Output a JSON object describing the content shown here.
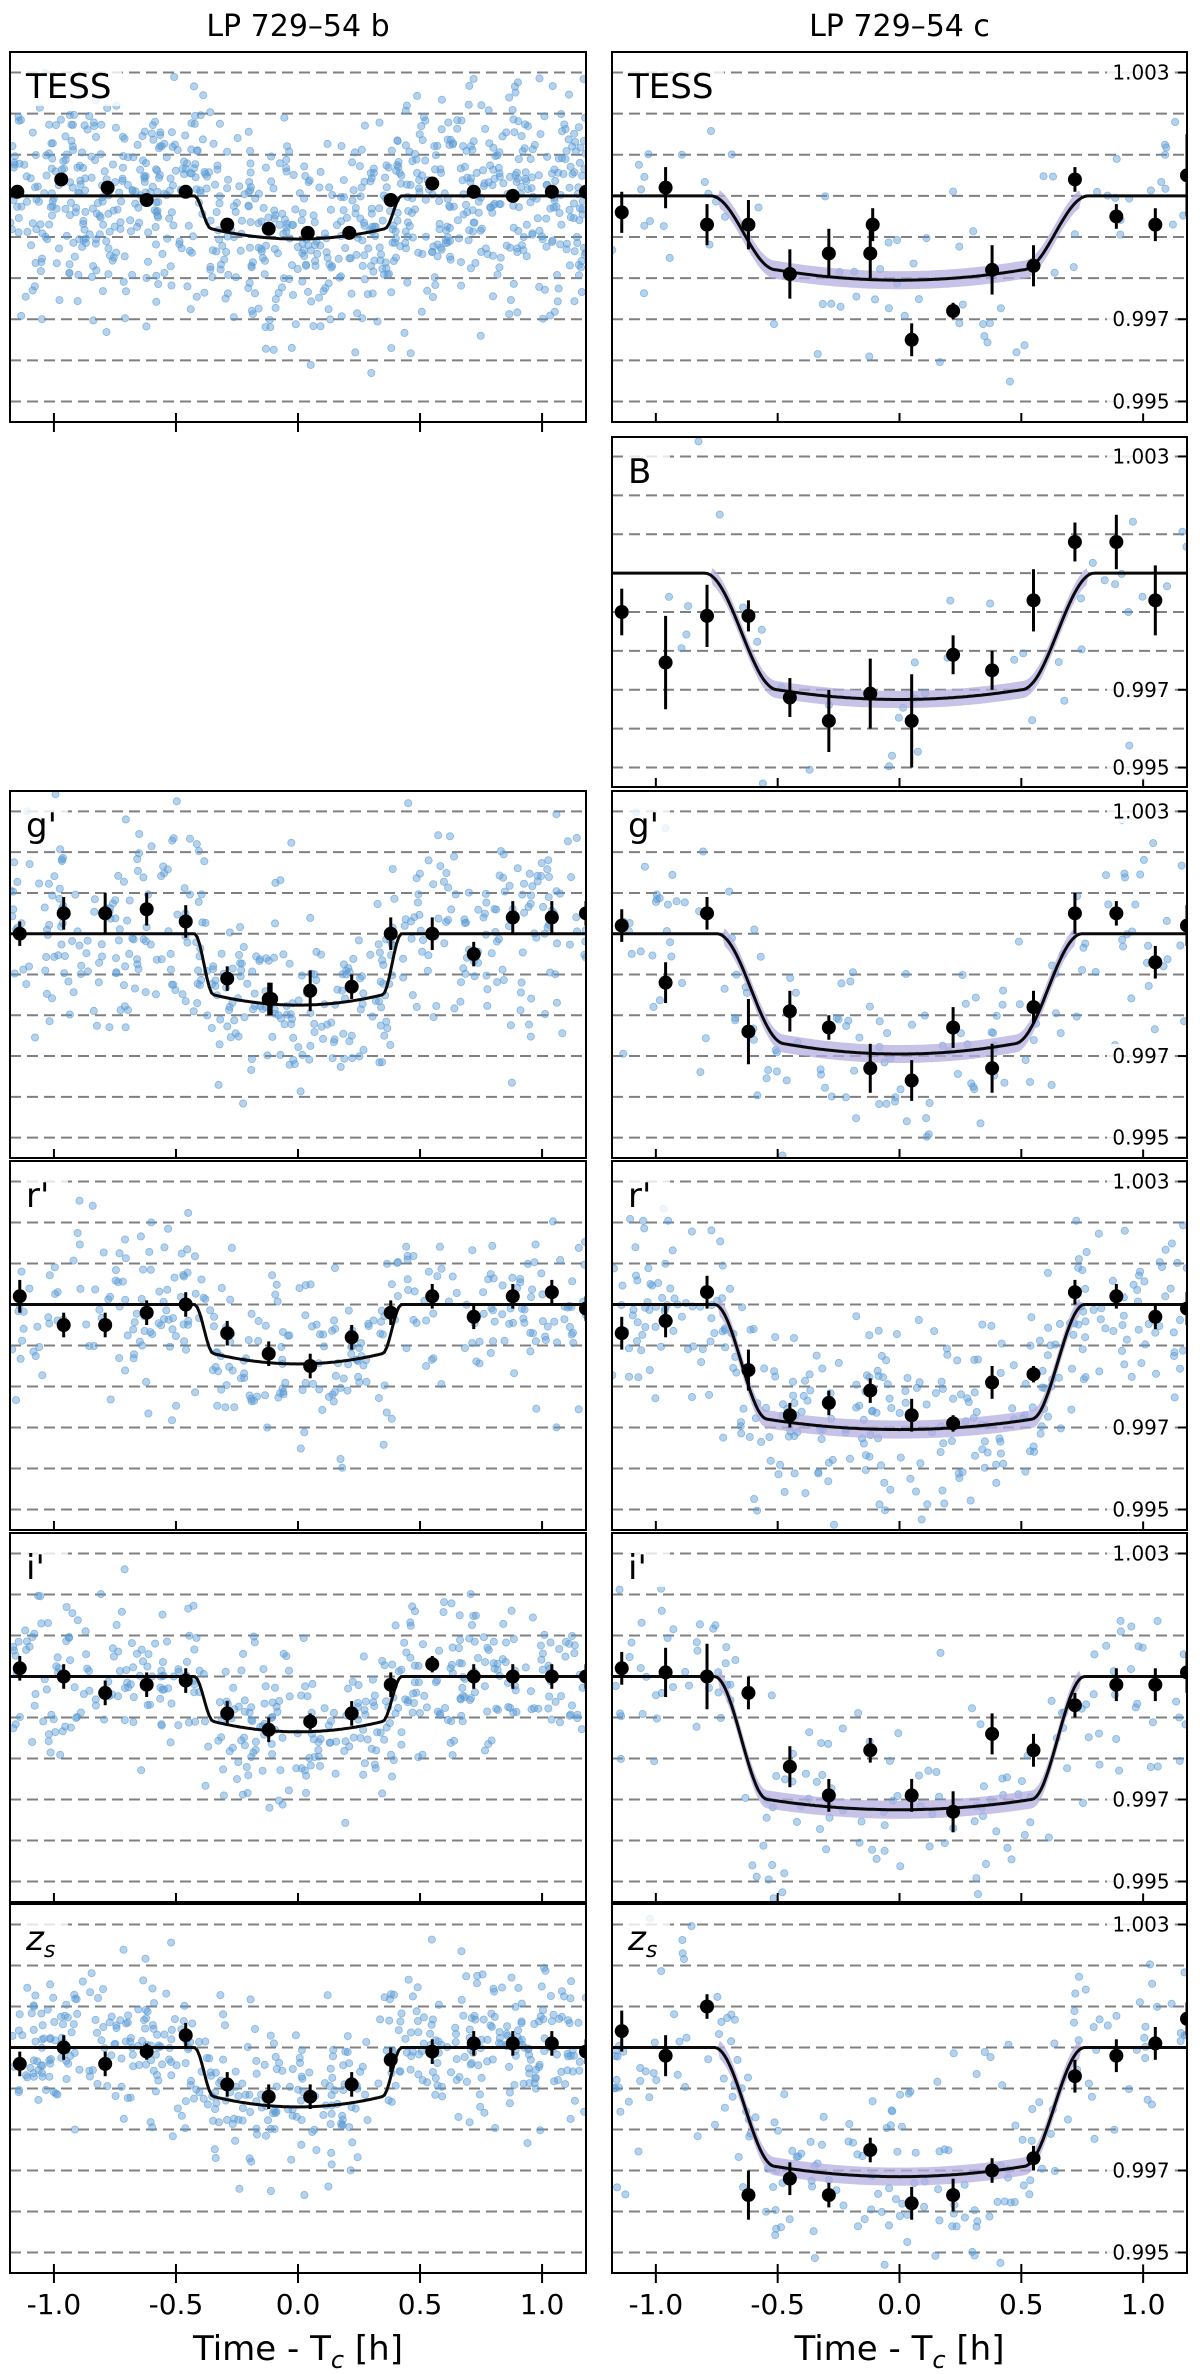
{
  "chart_data": {
    "type": "scatter",
    "columns": [
      {
        "id": "b",
        "title": "LP 729–54 b"
      },
      {
        "id": "c",
        "title": "LP 729–54 c"
      }
    ],
    "xlabel": "Time - T",
    "xlabel_sub": "c",
    "xlabel_unit": " [h]",
    "xlim": [
      -1.18,
      1.18
    ],
    "xticks": [
      -1.0,
      -0.5,
      0.0,
      0.5,
      1.0
    ],
    "xtick_labels": [
      "-1.0",
      "-0.5",
      "0.0",
      "0.5",
      "1.0"
    ],
    "ylim": [
      0.9945,
      1.0035
    ],
    "gridlines": [
      0.995,
      0.996,
      0.997,
      0.998,
      0.999,
      1.0,
      1.001,
      1.002,
      1.003
    ],
    "yticks": [
      0.995,
      0.997,
      1.003
    ],
    "ytick_labels": [
      "0.995",
      "0.997",
      "1.003"
    ],
    "raw_point_color": "#5b9bd5",
    "model_band_color": "#b3aee0",
    "panels": [
      {
        "id": "b-tess",
        "col": "b",
        "row": 0,
        "label": "TESS",
        "label_italic": false,
        "depth": 0.0008,
        "t_total": 0.85,
        "t_ingress": 0.07,
        "band": false,
        "n_raw": 900,
        "scatter_sd": 0.0024,
        "binned": [
          [
            -1.15,
            1.0001,
            0
          ],
          [
            -0.97,
            1.0004,
            0
          ],
          [
            -0.78,
            1.0002,
            0
          ],
          [
            -0.62,
            0.9999,
            0
          ],
          [
            -0.46,
            1.0001,
            0
          ],
          [
            -0.29,
            0.9993,
            0
          ],
          [
            -0.12,
            0.9992,
            0
          ],
          [
            0.04,
            0.9991,
            0
          ],
          [
            0.21,
            0.9991,
            0
          ],
          [
            0.38,
            0.9999,
            0
          ],
          [
            0.55,
            1.0003,
            0
          ],
          [
            0.72,
            1.0001,
            0
          ],
          [
            0.88,
            1.0,
            0
          ],
          [
            1.04,
            1.0001,
            0
          ],
          [
            1.18,
            1.0001,
            0
          ]
        ]
      },
      {
        "id": "c-tess",
        "col": "c",
        "row": 0,
        "label": "TESS",
        "label_italic": false,
        "depth": 0.0018,
        "t_total": 1.55,
        "t_ingress": 0.27,
        "band": true,
        "n_raw": 75,
        "scatter_sd": 0.002,
        "binned": [
          [
            -1.14,
            0.9996,
            0.0005
          ],
          [
            -0.96,
            1.0002,
            0.0005
          ],
          [
            -0.79,
            0.9993,
            0.0005
          ],
          [
            -0.62,
            0.9993,
            0.0006
          ],
          [
            -0.45,
            0.9981,
            0.0006
          ],
          [
            -0.29,
            0.9986,
            0.0006
          ],
          [
            -0.12,
            0.9986,
            0.0006
          ],
          [
            -0.11,
            0.9993,
            0.0004
          ],
          [
            0.05,
            0.9965,
            0.0004
          ],
          [
            0.22,
            0.9972,
            0.0002
          ],
          [
            0.38,
            0.9982,
            0.0006
          ],
          [
            0.55,
            0.9983,
            0.0005
          ],
          [
            0.72,
            1.0004,
            0.0003
          ],
          [
            0.89,
            0.9995,
            0.0003
          ],
          [
            1.05,
            0.9993,
            0.0004
          ],
          [
            1.18,
            1.0005,
            0.001
          ]
        ]
      },
      {
        "id": "c-b",
        "col": "c",
        "row": 1,
        "label": "B",
        "label_italic": false,
        "depth": 0.003,
        "t_total": 1.6,
        "t_ingress": 0.3,
        "band": true,
        "n_raw": 45,
        "scatter_sd": 0.003,
        "binned": [
          [
            -1.14,
            0.999,
            0.0006
          ],
          [
            -0.96,
            0.9977,
            0.0012
          ],
          [
            -0.79,
            0.9989,
            0.0008
          ],
          [
            -0.62,
            0.9989,
            0.0004
          ],
          [
            -0.45,
            0.9968,
            0.0005
          ],
          [
            -0.29,
            0.9962,
            0.0008
          ],
          [
            -0.12,
            0.9969,
            0.0009
          ],
          [
            0.05,
            0.9962,
            0.0012
          ],
          [
            0.22,
            0.9979,
            0.0005
          ],
          [
            0.38,
            0.9975,
            0.0005
          ],
          [
            0.55,
            0.9993,
            0.0008
          ],
          [
            0.72,
            1.0008,
            0.0005
          ],
          [
            0.89,
            1.0008,
            0.0007
          ],
          [
            1.05,
            0.9993,
            0.0009
          ]
        ]
      },
      {
        "id": "b-g",
        "col": "b",
        "row": 2,
        "label": "g'",
        "label_italic": false,
        "depth": 0.0015,
        "t_total": 0.85,
        "t_ingress": 0.08,
        "band": false,
        "n_raw": 450,
        "scatter_sd": 0.0022,
        "binned": [
          [
            -1.14,
            1.0,
            0.0003
          ],
          [
            -0.96,
            1.0005,
            0.0004
          ],
          [
            -0.79,
            1.0005,
            0.0005
          ],
          [
            -0.62,
            1.0006,
            0.0004
          ],
          [
            -0.46,
            1.0003,
            0.0004
          ],
          [
            -0.29,
            0.9989,
            0.0003
          ],
          [
            -0.12,
            0.9984,
            0.0004
          ],
          [
            -0.11,
            0.9984,
            0.0004
          ],
          [
            0.05,
            0.9986,
            0.0005
          ],
          [
            0.22,
            0.9987,
            0.0003
          ],
          [
            0.38,
            1.0,
            0.0004
          ],
          [
            0.55,
            1.0,
            0.0004
          ],
          [
            0.72,
            0.9995,
            0.0003
          ],
          [
            0.88,
            1.0004,
            0.0004
          ],
          [
            1.04,
            1.0004,
            0.0004
          ],
          [
            1.18,
            1.0005,
            0.0003
          ]
        ]
      },
      {
        "id": "c-g",
        "col": "c",
        "row": 2,
        "label": "g'",
        "label_italic": false,
        "depth": 0.0027,
        "t_total": 1.5,
        "t_ingress": 0.28,
        "band": true,
        "n_raw": 150,
        "scatter_sd": 0.0025,
        "binned": [
          [
            -1.14,
            1.0002,
            0.0004
          ],
          [
            -0.96,
            0.9988,
            0.0005
          ],
          [
            -0.79,
            1.0005,
            0.0004
          ],
          [
            -0.62,
            0.9976,
            0.0008
          ],
          [
            -0.45,
            0.9981,
            0.0005
          ],
          [
            -0.29,
            0.9977,
            0.0003
          ],
          [
            -0.12,
            0.9967,
            0.0006
          ],
          [
            0.05,
            0.9964,
            0.0005
          ],
          [
            0.22,
            0.9977,
            0.0005
          ],
          [
            0.38,
            0.9967,
            0.0006
          ],
          [
            0.55,
            0.9982,
            0.0004
          ],
          [
            0.72,
            1.0005,
            0.0005
          ],
          [
            0.89,
            1.0005,
            0.0003
          ],
          [
            1.05,
            0.9993,
            0.0004
          ],
          [
            1.18,
            1.0002,
            0.0005
          ]
        ]
      },
      {
        "id": "b-r",
        "col": "b",
        "row": 3,
        "label": "r'",
        "label_italic": false,
        "depth": 0.0012,
        "t_total": 0.85,
        "t_ingress": 0.08,
        "band": false,
        "n_raw": 330,
        "scatter_sd": 0.0018,
        "binned": [
          [
            -1.14,
            1.0002,
            0.0004
          ],
          [
            -0.96,
            0.9995,
            0.0003
          ],
          [
            -0.79,
            0.9995,
            0.0003
          ],
          [
            -0.62,
            0.9998,
            0.0003
          ],
          [
            -0.46,
            1.0,
            0.0003
          ],
          [
            -0.29,
            0.9993,
            0.0003
          ],
          [
            -0.12,
            0.9988,
            0.0003
          ],
          [
            0.05,
            0.9985,
            0.0003
          ],
          [
            0.22,
            0.9992,
            0.0003
          ],
          [
            0.38,
            0.9998,
            0.0003
          ],
          [
            0.55,
            1.0002,
            0.0003
          ],
          [
            0.72,
            0.9997,
            0.0003
          ],
          [
            0.88,
            1.0002,
            0.0003
          ],
          [
            1.04,
            1.0003,
            0.0003
          ],
          [
            1.18,
            0.9999,
            0.0003
          ]
        ]
      },
      {
        "id": "c-r",
        "col": "c",
        "row": 3,
        "label": "r'",
        "label_italic": false,
        "depth": 0.0028,
        "t_total": 1.52,
        "t_ingress": 0.22,
        "band": true,
        "n_raw": 330,
        "scatter_sd": 0.0022,
        "binned": [
          [
            -1.14,
            0.9993,
            0.0004
          ],
          [
            -0.96,
            0.9996,
            0.0004
          ],
          [
            -0.79,
            1.0003,
            0.0004
          ],
          [
            -0.62,
            0.9984,
            0.0005
          ],
          [
            -0.45,
            0.9973,
            0.0003
          ],
          [
            -0.29,
            0.9976,
            0.0003
          ],
          [
            -0.12,
            0.9979,
            0.0003
          ],
          [
            0.05,
            0.9973,
            0.0004
          ],
          [
            0.22,
            0.9971,
            0.0002
          ],
          [
            0.38,
            0.9981,
            0.0004
          ],
          [
            0.55,
            0.9983,
            0.0002
          ],
          [
            0.72,
            1.0003,
            0.0003
          ],
          [
            0.89,
            1.0002,
            0.0003
          ],
          [
            1.05,
            0.9997,
            0.0003
          ],
          [
            1.18,
            0.9999,
            0.0004
          ]
        ]
      },
      {
        "id": "b-i",
        "col": "b",
        "row": 4,
        "label": "i'",
        "label_italic": false,
        "depth": 0.0011,
        "t_total": 0.85,
        "t_ingress": 0.08,
        "band": false,
        "n_raw": 420,
        "scatter_sd": 0.0017,
        "binned": [
          [
            -1.14,
            1.0002,
            0.0003
          ],
          [
            -0.96,
            1.0,
            0.0003
          ],
          [
            -0.79,
            0.9996,
            0.0003
          ],
          [
            -0.62,
            0.9998,
            0.0003
          ],
          [
            -0.46,
            0.9999,
            0.0003
          ],
          [
            -0.29,
            0.9991,
            0.0003
          ],
          [
            -0.12,
            0.9987,
            0.0003
          ],
          [
            0.05,
            0.9989,
            0.0002
          ],
          [
            0.22,
            0.9991,
            0.0003
          ],
          [
            0.38,
            0.9998,
            0.0003
          ],
          [
            0.55,
            1.0003,
            0.0002
          ],
          [
            0.72,
            1.0,
            0.0003
          ],
          [
            0.88,
            1.0,
            0.0003
          ],
          [
            1.04,
            1.0,
            0.0003
          ],
          [
            1.18,
            1.0,
            0.0003
          ]
        ]
      },
      {
        "id": "c-i",
        "col": "c",
        "row": 4,
        "label": "i'",
        "label_italic": false,
        "depth": 0.003,
        "t_total": 1.52,
        "t_ingress": 0.22,
        "band": true,
        "n_raw": 160,
        "scatter_sd": 0.0022,
        "binned": [
          [
            -1.14,
            1.0002,
            0.0004
          ],
          [
            -0.96,
            1.0001,
            0.0006
          ],
          [
            -0.79,
            1.0,
            0.0008
          ],
          [
            -0.62,
            0.9996,
            0.0004
          ],
          [
            -0.45,
            0.9978,
            0.0005
          ],
          [
            -0.29,
            0.9971,
            0.0004
          ],
          [
            -0.12,
            0.9982,
            0.0003
          ],
          [
            0.05,
            0.9971,
            0.0004
          ],
          [
            0.22,
            0.9967,
            0.0005
          ],
          [
            0.38,
            0.9986,
            0.0005
          ],
          [
            0.55,
            0.9982,
            0.0004
          ],
          [
            0.72,
            0.9993,
            0.0003
          ],
          [
            0.89,
            0.9998,
            0.0004
          ],
          [
            1.05,
            0.9998,
            0.0004
          ],
          [
            1.18,
            1.0001,
            0.0005
          ]
        ]
      },
      {
        "id": "b-z",
        "col": "b",
        "row": 5,
        "label": "zs",
        "label_italic": true,
        "depth": 0.0012,
        "t_total": 0.85,
        "t_ingress": 0.08,
        "band": false,
        "n_raw": 500,
        "scatter_sd": 0.0017,
        "binned": [
          [
            -1.14,
            0.9996,
            0.0003
          ],
          [
            -0.96,
            1.0,
            0.0003
          ],
          [
            -0.79,
            0.9996,
            0.0003
          ],
          [
            -0.62,
            0.9999,
            0.0002
          ],
          [
            -0.46,
            1.0003,
            0.0003
          ],
          [
            -0.29,
            0.9991,
            0.0003
          ],
          [
            -0.12,
            0.9988,
            0.0003
          ],
          [
            0.05,
            0.9988,
            0.0003
          ],
          [
            0.22,
            0.9991,
            0.0003
          ],
          [
            0.38,
            0.9997,
            0.0003
          ],
          [
            0.55,
            0.9999,
            0.0003
          ],
          [
            0.72,
            1.0001,
            0.0003
          ],
          [
            0.88,
            1.0001,
            0.0003
          ],
          [
            1.04,
            1.0001,
            0.0003
          ],
          [
            1.18,
            0.9999,
            0.0003
          ]
        ]
      },
      {
        "id": "c-z",
        "col": "c",
        "row": 5,
        "label": "zs",
        "label_italic": true,
        "depth": 0.0029,
        "t_total": 1.52,
        "t_ingress": 0.25,
        "band": true,
        "n_raw": 200,
        "scatter_sd": 0.0024,
        "binned": [
          [
            -1.14,
            1.0004,
            0.0005
          ],
          [
            -0.96,
            0.9998,
            0.0005
          ],
          [
            -0.79,
            1.001,
            0.0003
          ],
          [
            -0.62,
            0.9964,
            0.0006
          ],
          [
            -0.45,
            0.9968,
            0.0004
          ],
          [
            -0.29,
            0.9964,
            0.0003
          ],
          [
            -0.12,
            0.9975,
            0.0003
          ],
          [
            0.05,
            0.9962,
            0.0004
          ],
          [
            0.22,
            0.9964,
            0.0004
          ],
          [
            0.38,
            0.997,
            0.0003
          ],
          [
            0.55,
            0.9973,
            0.0003
          ],
          [
            0.72,
            0.9993,
            0.0004
          ],
          [
            0.89,
            0.9998,
            0.0004
          ],
          [
            1.05,
            1.0001,
            0.0004
          ],
          [
            1.18,
            1.0007,
            0.0004
          ]
        ]
      }
    ]
  }
}
